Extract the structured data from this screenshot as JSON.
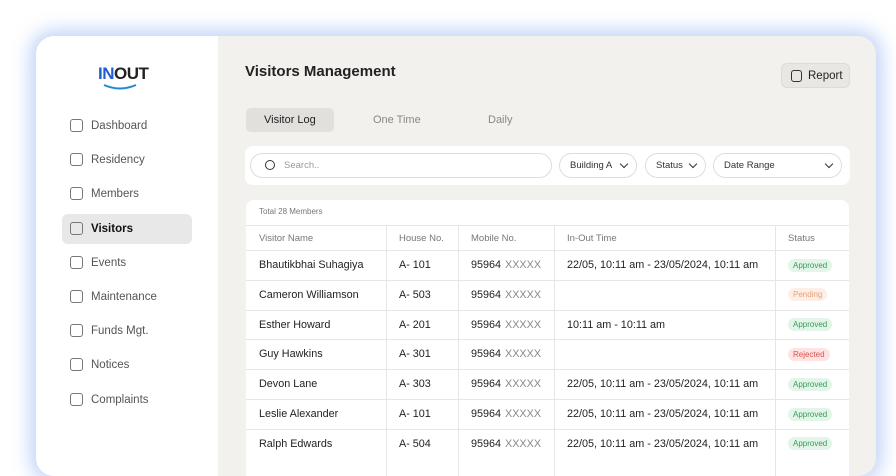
{
  "logo": {
    "in": "IN",
    "out": "OUT"
  },
  "nav": [
    "Dashboard",
    "Residency",
    "Members",
    "Visitors",
    "Events",
    "Maintenance",
    "Funds Mgt.",
    "Notices",
    "Complaints"
  ],
  "active_nav": 3,
  "header": {
    "title": "Visitors Management",
    "report": "Report"
  },
  "tabs": [
    "Visitor Log",
    "One Time",
    "Daily"
  ],
  "active_tab": 0,
  "search": {
    "placeholder": "Search.."
  },
  "filters": [
    "Building A",
    "Status",
    "Date Range"
  ],
  "table": {
    "meta": "Total 28 Members",
    "columns": [
      "Visitor Name",
      "House No.",
      "Mobile No.",
      "In-Out Time",
      "Status"
    ],
    "rows": [
      {
        "name": "Bhautikbhai Suhagiya",
        "house": "A- 101",
        "mobile": "95964",
        "mask": "XXXXX",
        "time": "22/05, 10:11 am - 23/05/2024, 10:11 am",
        "status": "Approved"
      },
      {
        "name": "Cameron Williamson",
        "house": "A- 503",
        "mobile": "95964",
        "mask": "XXXXX",
        "time": null,
        "status": "Pending"
      },
      {
        "name": "Esther Howard",
        "house": "A- 201",
        "mobile": "95964",
        "mask": "XXXXX",
        "time": "10:11 am - 10:11 am",
        "status": "Approved"
      },
      {
        "name": "Guy Hawkins",
        "house": "A- 301",
        "mobile": "95964",
        "mask": "XXXXX",
        "time": null,
        "status": "Rejected"
      },
      {
        "name": "Devon Lane",
        "house": "A- 303",
        "mobile": "95964",
        "mask": "XXXXX",
        "time": "22/05, 10:11 am - 23/05/2024, 10:11 am",
        "status": "Approved"
      },
      {
        "name": "Leslie Alexander",
        "house": "A- 101",
        "mobile": "95964",
        "mask": "XXXXX",
        "time": "22/05, 10:11 am - 23/05/2024, 10:11 am",
        "status": "Approved"
      },
      {
        "name": "Ralph Edwards",
        "house": "A- 504",
        "mobile": "95964",
        "mask": "XXXXX",
        "time": "22/05, 10:11 am - 23/05/2024, 10:11 am",
        "status": "Approved"
      }
    ]
  },
  "status_colors": {
    "Approved": {
      "fg": "#3a9a5b",
      "bg": "#e3f5e8"
    },
    "Pending": {
      "fg": "#e8a07a",
      "bg": "#fdeee6"
    },
    "Rejected": {
      "fg": "#d9534f",
      "bg": "#fde3e2"
    }
  }
}
